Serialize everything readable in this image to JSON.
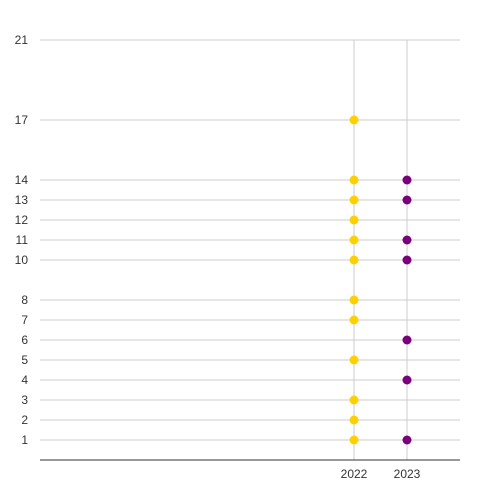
{
  "chart_data": {
    "type": "scatter",
    "categories": [
      "2022",
      "2023"
    ],
    "y_ticks": [
      1,
      2,
      3,
      4,
      5,
      6,
      7,
      8,
      10,
      11,
      12,
      13,
      14,
      17,
      21
    ],
    "ylim": [
      0,
      21
    ],
    "grid": true,
    "legend": "none",
    "series": [
      {
        "category": "2022",
        "color": "#FFD000",
        "values": [
          1,
          2,
          3,
          5,
          7,
          8,
          10,
          11,
          12,
          13,
          14,
          17
        ]
      },
      {
        "category": "2023",
        "color": "#7B007B",
        "values": [
          1,
          4,
          6,
          10,
          11,
          13,
          14
        ]
      }
    ],
    "colors": {
      "grid": "#cccccc",
      "axis": "#333333",
      "text": "#333333"
    }
  }
}
